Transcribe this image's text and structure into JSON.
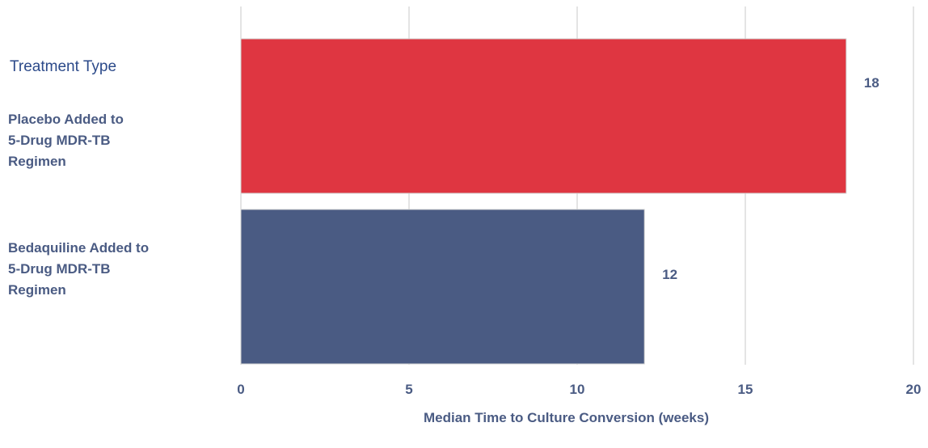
{
  "chart_data": {
    "type": "bar",
    "orientation": "horizontal",
    "legend_title": "Treatment Type",
    "categories": [
      "Placebo Added to\n5-Drug MDR-TB\nRegimen",
      "Bedaquiline Added to\n5-Drug MDR-TB\nRegimen"
    ],
    "values": [
      18,
      12
    ],
    "bar_colors": [
      "#df3641",
      "#4a5b83"
    ],
    "value_labels": [
      "18",
      "12"
    ],
    "xlabel": "Median Time to Culture Conversion (weeks)",
    "xlim": [
      0,
      20
    ],
    "xticks": [
      "0",
      "5",
      "10",
      "15",
      "20"
    ],
    "grid": true,
    "text_color": "#4a5b83",
    "legend_title_color": "#2c4a8a"
  }
}
